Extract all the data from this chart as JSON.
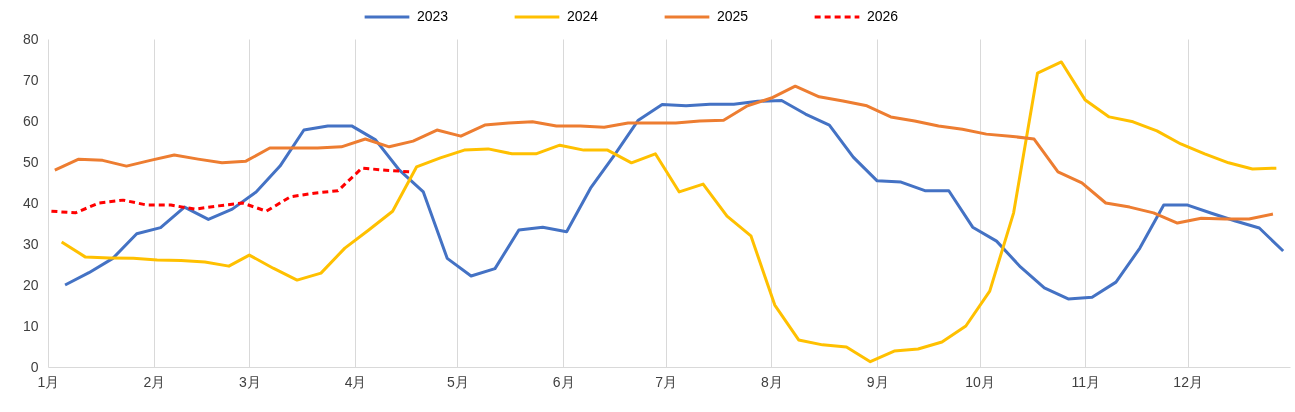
{
  "chart_data": {
    "type": "line",
    "series": [
      {
        "name": "2023",
        "color": "#4472c4",
        "x": [
          "--01-06",
          "--01-13",
          "--01-20",
          "--01-27",
          "--02-03",
          "--02-10",
          "--02-17",
          "--02-24",
          "--03-03",
          "--03-10",
          "--03-17",
          "--03-24",
          "--03-31",
          "--04-07",
          "--04-14",
          "--04-21",
          "--04-28",
          "--05-05",
          "--05-12",
          "--05-19",
          "--05-26",
          "--06-02",
          "--06-09",
          "--06-16",
          "--06-23",
          "--06-30",
          "--07-07",
          "--07-14",
          "--07-21",
          "--07-28",
          "--08-04",
          "--08-11",
          "--08-18",
          "--08-25",
          "--09-01",
          "--09-08",
          "--09-15",
          "--09-22",
          "--09-29",
          "--10-06",
          "--10-13",
          "--10-20",
          "--10-27",
          "--11-03",
          "--11-10",
          "--11-17",
          "--11-24",
          "--12-01",
          "--12-08",
          "--12-15",
          "--12-22",
          "--12-29"
        ],
        "values": [
          20,
          23,
          26.5,
          32.5,
          34,
          39,
          36,
          38.5,
          42.7,
          49,
          57.8,
          58.8,
          58.8,
          55.4,
          48,
          42.7,
          26.5,
          22.2,
          24,
          33.4,
          34.1,
          33,
          43.6,
          51.7,
          60.2,
          64,
          63.7,
          64.1,
          64.1,
          64.8,
          65,
          61.7,
          59,
          51.2,
          45.4,
          45.1,
          43,
          43,
          34.1,
          30.7,
          24.4,
          19.3,
          16.6,
          17,
          20.7,
          29,
          39.5,
          39.5,
          37.5,
          35.6,
          33.9,
          28.3
        ]
      },
      {
        "name": "2024",
        "color": "#ffc000",
        "x": [
          "--01-05",
          "--01-12",
          "--01-19",
          "--01-26",
          "--02-02",
          "--02-09",
          "--02-16",
          "--02-23",
          "--03-01",
          "--03-08",
          "--03-15",
          "--03-22",
          "--03-29",
          "--04-05",
          "--04-12",
          "--04-19",
          "--04-26",
          "--05-03",
          "--05-10",
          "--05-17",
          "--05-24",
          "--05-31",
          "--06-07",
          "--06-14",
          "--06-21",
          "--06-28",
          "--07-05",
          "--07-12",
          "--07-19",
          "--07-26",
          "--08-02",
          "--08-09",
          "--08-16",
          "--08-23",
          "--08-30",
          "--09-06",
          "--09-13",
          "--09-20",
          "--09-27",
          "--10-04",
          "--10-11",
          "--10-18",
          "--10-25",
          "--11-01",
          "--11-08",
          "--11-15",
          "--11-22",
          "--11-29",
          "--12-06",
          "--12-13",
          "--12-20",
          "--12-27"
        ],
        "values": [
          30.5,
          26.8,
          26.6,
          26.5,
          26.1,
          26,
          25.6,
          24.6,
          27.3,
          24.1,
          21.2,
          22.9,
          29,
          33.4,
          38,
          48.8,
          51,
          52.9,
          53.2,
          52,
          52,
          54.1,
          52.9,
          52.9,
          49.8,
          52,
          42.7,
          44.6,
          36.8,
          32,
          15.1,
          6.6,
          5.4,
          4.9,
          1.3,
          3.9,
          4.4,
          6.1,
          10,
          18.5,
          37.6,
          71.7,
          74.4,
          65.1,
          61,
          59.8,
          57.6,
          54.4,
          52,
          49.8,
          48.3,
          48.5
        ]
      },
      {
        "name": "2025",
        "color": "#ed7d31",
        "x": [
          "--01-03",
          "--01-10",
          "--01-17",
          "--01-24",
          "--01-31",
          "--02-07",
          "--02-14",
          "--02-21",
          "--02-28",
          "--03-07",
          "--03-14",
          "--03-21",
          "--03-28",
          "--04-04",
          "--04-11",
          "--04-18",
          "--04-25",
          "--05-02",
          "--05-09",
          "--05-16",
          "--05-23",
          "--05-30",
          "--06-06",
          "--06-13",
          "--06-20",
          "--06-27",
          "--07-04",
          "--07-11",
          "--07-18",
          "--07-25",
          "--08-01",
          "--08-08",
          "--08-15",
          "--08-22",
          "--08-29",
          "--09-05",
          "--09-12",
          "--09-19",
          "--09-26",
          "--10-03",
          "--10-10",
          "--10-17",
          "--10-24",
          "--10-31",
          "--11-07",
          "--11-14",
          "--11-21",
          "--11-28",
          "--12-05",
          "--12-12",
          "--12-19",
          "--12-26"
        ],
        "values": [
          48,
          50.7,
          50.4,
          49,
          50.4,
          51.7,
          50.7,
          49.8,
          50.2,
          53.4,
          53.4,
          53.4,
          53.7,
          55.6,
          53.7,
          55.1,
          57.8,
          56.3,
          59,
          59.5,
          59.8,
          58.8,
          58.8,
          58.5,
          59.5,
          59.5,
          59.5,
          60,
          60.2,
          63.7,
          65.6,
          68.5,
          65.9,
          64.9,
          63.7,
          61,
          60,
          58.8,
          58,
          56.8,
          56.3,
          55.6,
          47.6,
          44.9,
          40,
          39,
          37.6,
          35.1,
          36.3,
          36.1,
          36.1,
          37.3
        ]
      },
      {
        "name": "2026",
        "color": "#ff0000",
        "line_style": "dashed",
        "x": [
          "--01-02",
          "--01-09",
          "--01-16",
          "--01-23",
          "--01-30",
          "--02-06",
          "--02-13",
          "--02-20",
          "--02-27",
          "--03-06",
          "--03-13",
          "--03-20",
          "--03-27",
          "--04-03",
          "--04-10",
          "--04-17"
        ],
        "values": [
          38,
          37.6,
          40,
          40.7,
          39.5,
          39.5,
          38.5,
          39.3,
          40,
          38,
          41.5,
          42.4,
          43,
          48.5,
          48,
          47.6
        ]
      }
    ],
    "xlim": [
      "--01-01",
      "--12-31"
    ],
    "xticks": [
      {
        "value": "--01-01",
        "label": "1月"
      },
      {
        "value": "--02-01",
        "label": "2月"
      },
      {
        "value": "--03-01",
        "label": "3月"
      },
      {
        "value": "--04-01",
        "label": "4月"
      },
      {
        "value": "--05-01",
        "label": "5月"
      },
      {
        "value": "--06-01",
        "label": "6月"
      },
      {
        "value": "--07-01",
        "label": "7月"
      },
      {
        "value": "--08-01",
        "label": "8月"
      },
      {
        "value": "--09-01",
        "label": "9月"
      },
      {
        "value": "--10-01",
        "label": "10月"
      },
      {
        "value": "--11-01",
        "label": "11月"
      },
      {
        "value": "--12-01",
        "label": "12月"
      }
    ],
    "ylim": [
      0,
      80
    ],
    "yticks": [
      0,
      10,
      20,
      30,
      40,
      50,
      60,
      70,
      80
    ],
    "grid": "x",
    "legend": "top",
    "marker": "none",
    "line_style": "solid"
  }
}
